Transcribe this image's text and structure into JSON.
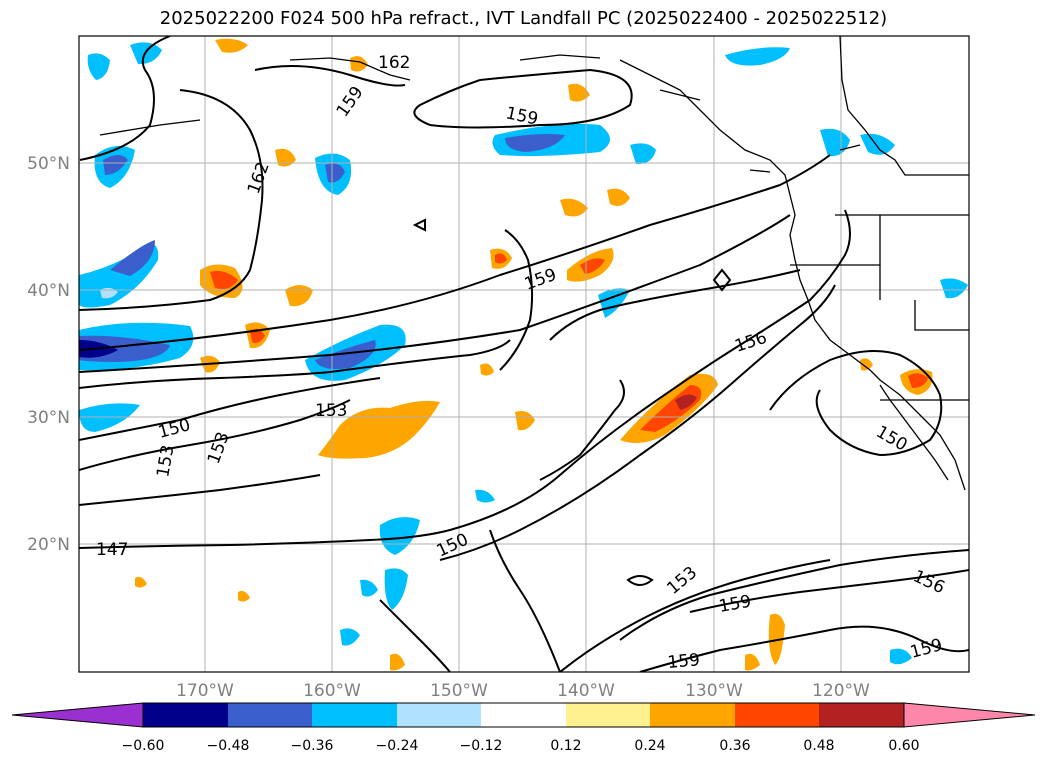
{
  "title": "2025022200 F024 500 hPa refract., IVT Landfall PC (2025022400 - 2025022512)",
  "lat_labels": [
    "50°N",
    "40°N",
    "30°N",
    "20°N"
  ],
  "lon_labels": [
    "170°W",
    "160°W",
    "150°W",
    "140°W",
    "130°W",
    "120°W"
  ],
  "contour_labels": [
    "162",
    "159",
    "162",
    "159",
    "159",
    "156",
    "153",
    "150",
    "153",
    "153",
    "150",
    "147",
    "150",
    "153",
    "159",
    "159",
    "156",
    "159"
  ],
  "colorbar": {
    "ticks": [
      "−0.60",
      "−0.48",
      "−0.36",
      "−0.24",
      "−0.12",
      "0.12",
      "0.24",
      "0.36",
      "0.48",
      "0.60"
    ],
    "colors": [
      "#9b30d0",
      "#00008b",
      "#3a5fcd",
      "#00bfff",
      "#b0e2ff",
      "#ffffff",
      "#fff090",
      "#ffa500",
      "#ff4500",
      "#b22222",
      "#ff88aa"
    ]
  }
}
